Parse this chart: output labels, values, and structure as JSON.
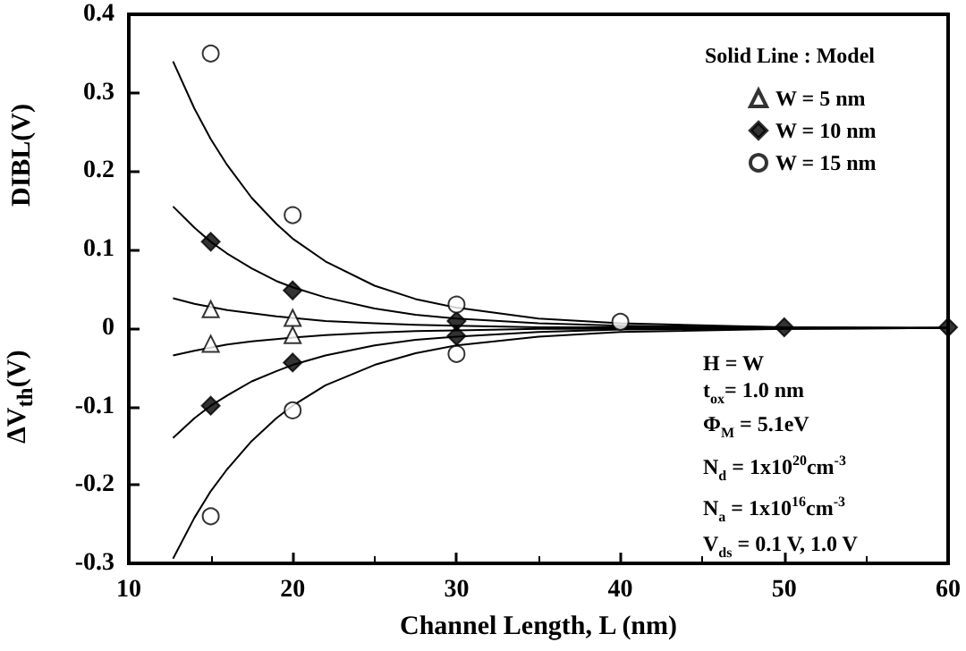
{
  "chart_data": {
    "type": "scatter",
    "xlabel": "Channel Length, L (nm)",
    "ylabel": "DIBL(V)",
    "annotations": [
      "ΔV$_{th}$(V)",
      "Solid Line : Model",
      "H = W",
      "t$_{ox}$= 1.0 nm",
      "Φ$_{M}$ = 5.1eV",
      "N$_{d}$ = 1x10$^{20}$cm$^{-3}$",
      "N$_{a}$ = 1x10$^{16}$cm$^{-3}$",
      "V$_{ds}$ = 0.1 V, 1.0 V"
    ],
    "xlim": [
      10,
      60
    ],
    "xticks": [
      10,
      20,
      30,
      40,
      50,
      60
    ],
    "ylim": [
      -0.3,
      0.4
    ],
    "yticks": [
      -0.3,
      -0.2,
      -0.1,
      0,
      0.1,
      0.2,
      0.3,
      0.4
    ],
    "legend": "top right",
    "series": [
      {
        "name": "W = 5 nm",
        "marker": "triangle",
        "color": "#ffffff",
        "x": [
          15,
          20,
          15,
          20
        ],
        "values": [
          0.024,
          0.013,
          -0.02,
          -0.009
        ]
      },
      {
        "name": "W = 10 nm",
        "marker": "diamond",
        "color": "#000000",
        "x": [
          15,
          20,
          30,
          40,
          50,
          60,
          15,
          20,
          30
        ],
        "values": [
          0.11,
          0.048,
          0.009,
          null,
          0.001,
          0.001,
          -0.099,
          -0.044,
          -0.01
        ]
      },
      {
        "name": "W = 15 nm",
        "marker": "circle",
        "color": "#ffffff",
        "x": [
          15,
          20,
          30,
          40,
          15,
          20,
          30
        ],
        "values": [
          0.35,
          0.144,
          0.03,
          0.008,
          -0.24,
          -0.105,
          -0.033
        ]
      },
      {
        "type": "line",
        "marker": "none",
        "color": "#000000",
        "x": [
          12.7,
          14,
          15,
          16,
          17.5,
          19,
          20,
          22,
          25,
          27.5,
          30,
          35,
          40,
          50,
          60
        ],
        "values": [
          0.34,
          0.28,
          0.241,
          0.208,
          0.166,
          0.133,
          0.114,
          0.085,
          0.054,
          0.037,
          0.026,
          0.012,
          0.006,
          0.001,
          0
        ]
      },
      {
        "type": "line",
        "marker": "none",
        "color": "#000000",
        "x": [
          12.7,
          14,
          15,
          16,
          17.5,
          19,
          20,
          22,
          25,
          27.5,
          30,
          35,
          40,
          50,
          60
        ],
        "values": [
          -0.294,
          -0.242,
          -0.208,
          -0.18,
          -0.144,
          -0.115,
          -0.099,
          -0.073,
          -0.047,
          -0.032,
          -0.022,
          -0.011,
          -0.005,
          -0.001,
          0
        ]
      },
      {
        "type": "line",
        "marker": "none",
        "color": "#000000",
        "x": [
          12.7,
          14,
          15,
          16,
          17.5,
          19,
          20,
          22,
          25,
          27.5,
          30,
          35,
          40,
          50,
          60
        ],
        "values": [
          0.155,
          0.128,
          0.11,
          0.095,
          0.076,
          0.06,
          0.052,
          0.039,
          0.025,
          0.017,
          0.012,
          0.006,
          0.003,
          0.001,
          0
        ]
      },
      {
        "type": "line",
        "marker": "none",
        "color": "#000000",
        "x": [
          12.7,
          14,
          15,
          16,
          17.5,
          19,
          20,
          22,
          25,
          27.5,
          30,
          35,
          40,
          50,
          60
        ],
        "values": [
          -0.14,
          -0.115,
          -0.099,
          -0.086,
          -0.068,
          -0.055,
          -0.047,
          -0.035,
          -0.022,
          -0.015,
          -0.011,
          -0.005,
          -0.002,
          -0.001,
          0
        ]
      },
      {
        "type": "line",
        "marker": "none",
        "color": "#000000",
        "x": [
          12.7,
          14,
          15,
          16,
          17.5,
          19,
          20,
          22,
          25,
          27.5,
          30,
          35,
          40,
          50,
          60
        ],
        "values": [
          0.038,
          0.031,
          0.027,
          0.023,
          0.019,
          0.015,
          0.013,
          0.009,
          0.006,
          0.004,
          0.003,
          0.001,
          0.001,
          0,
          0
        ]
      },
      {
        "type": "line",
        "marker": "none",
        "color": "#000000",
        "x": [
          12.7,
          14,
          15,
          16,
          17.5,
          19,
          20,
          22,
          25,
          27.5,
          30,
          35,
          40,
          50,
          60
        ],
        "values": [
          -0.035,
          -0.029,
          -0.025,
          -0.021,
          -0.017,
          -0.014,
          -0.012,
          -0.009,
          -0.006,
          -0.004,
          -0.003,
          -0.001,
          -0.001,
          0,
          0
        ]
      }
    ]
  }
}
